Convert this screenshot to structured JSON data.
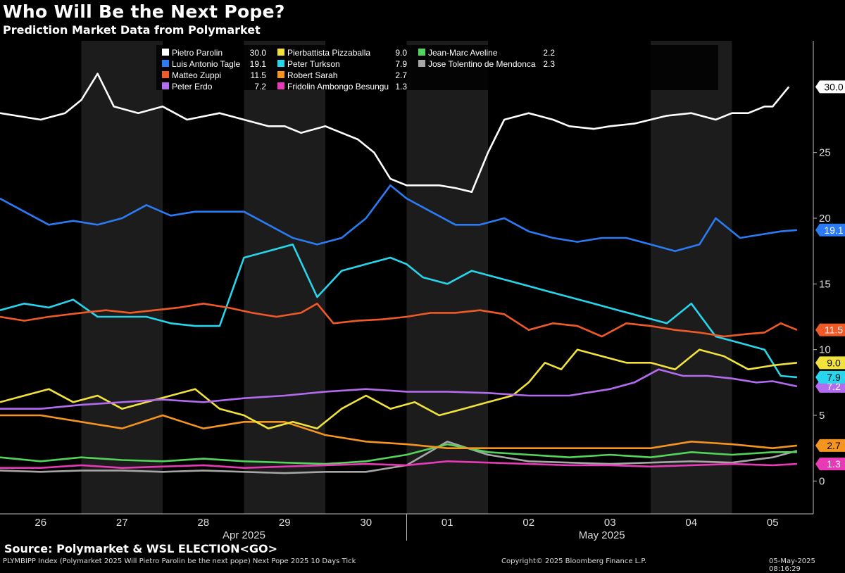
{
  "header": {
    "title": "Who Will Be the Next Pope?",
    "subtitle": "Prediction Market Data from Polymarket"
  },
  "footer": {
    "source": "Source: Polymarket & WSL ELECTION<GO>",
    "ticker_line": "PLYMBIPP Index (Polymarket 2025 Will Pietro Parolin be the next pope) Next Pope 2025 10 Days  Tick",
    "copyright": "Copyright© 2025 Bloomberg Finance L.P.",
    "timestamp": "05-May-2025 08:16:29"
  },
  "colors": {
    "background": "#000000",
    "shade_band": "#1c1c1c",
    "axis": "#bbbbbb"
  },
  "chart_data": {
    "type": "line",
    "x_unit": "days from Mar 26 2025 (0 = Mar 26)",
    "xlim": [
      -0.5,
      9.5
    ],
    "ylim": [
      -2.5,
      33.5
    ],
    "y_ticks": [
      0,
      5,
      10,
      15,
      20,
      25
    ],
    "x_ticks": [
      {
        "x": 0,
        "label": "26"
      },
      {
        "x": 1,
        "label": "27"
      },
      {
        "x": 2,
        "label": "28"
      },
      {
        "x": 3,
        "label": "29"
      },
      {
        "x": 4,
        "label": "30"
      },
      {
        "x": 5,
        "label": "01"
      },
      {
        "x": 6,
        "label": "02"
      },
      {
        "x": 7,
        "label": "03"
      },
      {
        "x": 8,
        "label": "04"
      },
      {
        "x": 9,
        "label": "05"
      }
    ],
    "month_labels": [
      {
        "x": 2.5,
        "label": "Apr 2025"
      },
      {
        "x": 6.9,
        "label": "May 2025"
      }
    ],
    "month_divider_x": 4.5,
    "shaded_bands": [
      [
        0.5,
        1.5
      ],
      [
        2.5,
        3.5
      ],
      [
        4.5,
        5.5
      ],
      [
        7.5,
        8.5
      ]
    ],
    "grid": false,
    "legend_position": "top",
    "series": [
      {
        "name": "Pietro Parolin",
        "value_label": "30.0",
        "last": 30.0,
        "color": "#ffffff",
        "x": [
          -0.5,
          0,
          0.3,
          0.5,
          0.7,
          0.9,
          1.2,
          1.5,
          1.8,
          2.2,
          2.5,
          2.8,
          3.0,
          3.2,
          3.5,
          3.7,
          3.9,
          4.1,
          4.3,
          4.5,
          4.7,
          4.9,
          5.1,
          5.3,
          5.5,
          5.7,
          6.0,
          6.3,
          6.5,
          6.8,
          7.0,
          7.3,
          7.5,
          7.7,
          8.0,
          8.3,
          8.5,
          8.7,
          8.9,
          9.0,
          9.2
        ],
        "y": [
          28,
          27.5,
          28,
          29,
          31,
          28.5,
          28,
          28.5,
          27.5,
          28,
          27.5,
          27,
          27,
          26.5,
          27,
          26.5,
          26,
          25,
          23,
          22.5,
          22.5,
          22.5,
          22.3,
          22,
          25,
          27.5,
          28,
          27.5,
          27,
          26.8,
          27,
          27.2,
          27.5,
          27.8,
          28,
          27.5,
          28,
          28,
          28.5,
          28.5,
          30
        ]
      },
      {
        "name": "Luis Antonio Tagle",
        "value_label": "19.1",
        "last": 19.1,
        "color": "#2b7bf5",
        "x": [
          -0.5,
          -0.2,
          0.1,
          0.4,
          0.7,
          1.0,
          1.3,
          1.6,
          1.9,
          2.2,
          2.5,
          2.8,
          3.1,
          3.4,
          3.7,
          4.0,
          4.3,
          4.5,
          4.8,
          5.1,
          5.4,
          5.7,
          6.0,
          6.3,
          6.6,
          6.9,
          7.2,
          7.5,
          7.8,
          8.1,
          8.3,
          8.6,
          8.9,
          9.1,
          9.3
        ],
        "y": [
          21.5,
          20.5,
          19.5,
          19.8,
          19.5,
          20,
          21,
          20.2,
          20.5,
          20.5,
          20.5,
          19.5,
          18.5,
          18,
          18.5,
          20,
          22.5,
          21.5,
          20.5,
          19.5,
          19.5,
          20,
          19,
          18.5,
          18.2,
          18.5,
          18.5,
          18,
          17.5,
          18,
          20,
          18.5,
          18.8,
          19,
          19.1
        ]
      },
      {
        "name": "Matteo Zuppi",
        "value_label": "11.5",
        "last": 11.5,
        "color": "#f05a28",
        "x": [
          -0.5,
          -0.2,
          0.1,
          0.5,
          0.8,
          1.1,
          1.4,
          1.7,
          2.0,
          2.3,
          2.6,
          2.9,
          3.2,
          3.4,
          3.6,
          3.9,
          4.2,
          4.5,
          4.8,
          5.1,
          5.4,
          5.7,
          6.0,
          6.3,
          6.6,
          6.9,
          7.2,
          7.5,
          7.8,
          8.1,
          8.4,
          8.7,
          8.9,
          9.1,
          9.3
        ],
        "y": [
          12.5,
          12.2,
          12.5,
          12.8,
          13,
          12.8,
          13,
          13.2,
          13.5,
          13.2,
          12.8,
          12.5,
          12.8,
          13.5,
          12,
          12.2,
          12.3,
          12.5,
          12.8,
          12.8,
          13,
          12.7,
          11.5,
          12,
          11.8,
          11,
          12,
          11.8,
          11.5,
          11.3,
          11,
          11.2,
          11.3,
          12,
          11.5
        ]
      },
      {
        "name": "Peter Erdo",
        "value_label": "7.2",
        "last": 7.2,
        "color": "#b36bf0",
        "x": [
          -0.5,
          0,
          0.5,
          1.0,
          1.5,
          2.0,
          2.5,
          3.0,
          3.5,
          4.0,
          4.5,
          5.0,
          5.5,
          6.0,
          6.5,
          7.0,
          7.3,
          7.6,
          7.9,
          8.2,
          8.5,
          8.8,
          9.0,
          9.3
        ],
        "y": [
          5.5,
          5.5,
          5.8,
          6,
          6.2,
          6,
          6.3,
          6.5,
          6.8,
          7,
          6.8,
          6.8,
          6.7,
          6.5,
          6.5,
          7,
          7.5,
          8.5,
          8,
          8,
          7.8,
          7.5,
          7.6,
          7.2
        ]
      },
      {
        "name": "Pierbattista Pizzaballa",
        "value_label": "9.0",
        "last": 9.0,
        "color": "#f2e23c",
        "x": [
          -0.5,
          -0.2,
          0.1,
          0.4,
          0.7,
          1.0,
          1.3,
          1.6,
          1.9,
          2.2,
          2.5,
          2.8,
          3.1,
          3.4,
          3.7,
          4.0,
          4.3,
          4.6,
          4.9,
          5.2,
          5.5,
          5.8,
          6.0,
          6.2,
          6.4,
          6.6,
          6.9,
          7.2,
          7.5,
          7.8,
          8.1,
          8.4,
          8.7,
          9.0,
          9.3
        ],
        "y": [
          6,
          6.5,
          7,
          6,
          6.5,
          5.5,
          6,
          6.5,
          7,
          5.5,
          5,
          4,
          4.5,
          4,
          5.5,
          6.5,
          5.5,
          6,
          5,
          5.5,
          6,
          6.5,
          7.5,
          9,
          8.5,
          10,
          9.5,
          9,
          9,
          8.5,
          10,
          9.5,
          8.5,
          8.8,
          9
        ]
      },
      {
        "name": "Peter Turkson",
        "value_label": "7.9",
        "last": 7.9,
        "color": "#27d6ec",
        "x": [
          -0.5,
          -0.2,
          0.1,
          0.4,
          0.7,
          1.0,
          1.3,
          1.6,
          1.9,
          2.2,
          2.5,
          2.8,
          3.1,
          3.4,
          3.7,
          4.0,
          4.3,
          4.5,
          4.7,
          5.0,
          5.3,
          5.6,
          5.9,
          6.2,
          6.5,
          6.8,
          7.1,
          7.4,
          7.7,
          8.0,
          8.3,
          8.6,
          8.9,
          9.1,
          9.3
        ],
        "y": [
          13,
          13.5,
          13.2,
          13.8,
          12.5,
          12.5,
          12.5,
          12,
          11.8,
          11.8,
          17,
          17.5,
          18,
          14,
          16,
          16.5,
          17,
          16.5,
          15.5,
          15,
          16,
          15.5,
          15,
          14.5,
          14,
          13.5,
          13,
          12.5,
          12,
          13.5,
          11,
          10.5,
          10,
          8,
          7.9
        ]
      },
      {
        "name": "Robert Sarah",
        "value_label": "2.7",
        "last": 2.7,
        "color": "#f5951f",
        "x": [
          -0.5,
          0,
          0.5,
          1.0,
          1.5,
          2.0,
          2.5,
          3.0,
          3.5,
          4.0,
          4.5,
          5.0,
          5.5,
          6.0,
          6.5,
          7.0,
          7.5,
          8.0,
          8.5,
          9.0,
          9.3
        ],
        "y": [
          5,
          5,
          4.5,
          4,
          5,
          4,
          4.5,
          4.5,
          3.5,
          3,
          2.8,
          2.5,
          2.5,
          2.5,
          2.5,
          2.5,
          2.5,
          3,
          2.8,
          2.5,
          2.7
        ]
      },
      {
        "name": "Fridolin Ambongo Besungu",
        "value_label": "1.3",
        "last": 1.3,
        "color": "#e83ab7",
        "x": [
          -0.5,
          0,
          0.5,
          1.0,
          1.5,
          2.0,
          2.5,
          3.0,
          3.5,
          4.0,
          4.5,
          5.0,
          5.5,
          6.0,
          6.5,
          7.0,
          7.5,
          8.0,
          8.5,
          9.0,
          9.3
        ],
        "y": [
          1,
          1,
          1.2,
          1,
          1.1,
          1.2,
          1,
          1.1,
          1.2,
          1.3,
          1.2,
          1.5,
          1.4,
          1.3,
          1.2,
          1.2,
          1.1,
          1.2,
          1.3,
          1.2,
          1.3
        ]
      },
      {
        "name": "Jean-Marc Aveline",
        "value_label": "2.2",
        "last": 2.2,
        "color": "#53d45a",
        "x": [
          -0.5,
          0,
          0.5,
          1.0,
          1.5,
          2.0,
          2.5,
          3.0,
          3.5,
          4.0,
          4.5,
          5.0,
          5.5,
          6.0,
          6.5,
          7.0,
          7.5,
          8.0,
          8.5,
          9.0,
          9.3
        ],
        "y": [
          1.8,
          1.5,
          1.8,
          1.6,
          1.5,
          1.7,
          1.5,
          1.4,
          1.3,
          1.5,
          2,
          2.8,
          2.2,
          2,
          1.8,
          2,
          1.8,
          2.2,
          2,
          2.2,
          2.2
        ]
      },
      {
        "name": "Jose Tolentino de Mendonca",
        "value_label": "2.3",
        "last": 2.3,
        "color": "#a6a6a6",
        "x": [
          -0.5,
          0,
          0.5,
          1.0,
          1.5,
          2.0,
          2.5,
          3.0,
          3.5,
          4.0,
          4.5,
          5.0,
          5.5,
          6.0,
          6.5,
          7.0,
          7.5,
          8.0,
          8.5,
          9.0,
          9.3
        ],
        "y": [
          0.8,
          0.7,
          0.8,
          0.8,
          0.7,
          0.8,
          0.7,
          0.6,
          0.7,
          0.7,
          1.2,
          3,
          2,
          1.5,
          1.4,
          1.3,
          1.4,
          1.5,
          1.4,
          1.8,
          2.3
        ]
      }
    ]
  }
}
